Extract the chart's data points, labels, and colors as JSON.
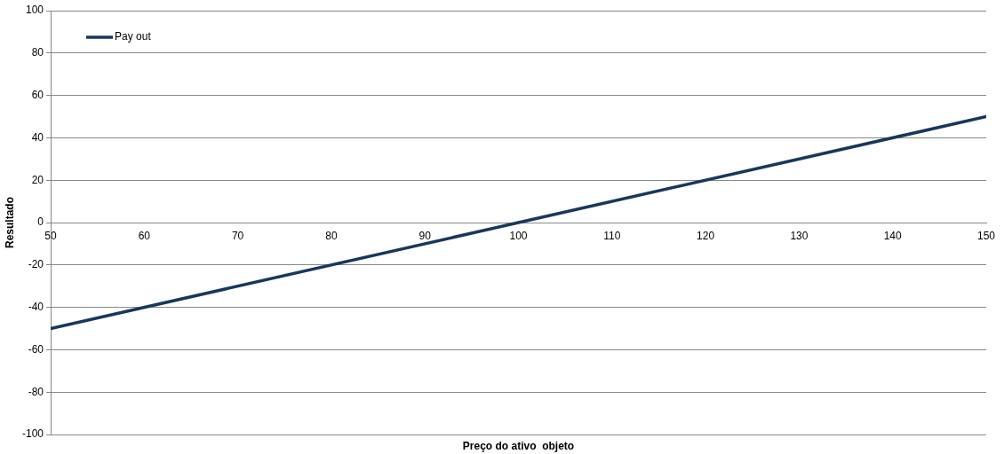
{
  "chart_data": {
    "type": "line",
    "xlabel": "Preço do ativo  objeto",
    "ylabel": "Resultado",
    "x": [
      50,
      100,
      150
    ],
    "series": [
      {
        "name": "Pay out",
        "color": "#17375e",
        "values": [
          -50,
          0,
          50
        ]
      }
    ],
    "xlim": [
      50,
      150
    ],
    "xticks": [
      50,
      60,
      70,
      80,
      90,
      100,
      110,
      120,
      130,
      140,
      150
    ],
    "ylim": [
      -100,
      100
    ],
    "yticks": [
      -100,
      -80,
      -60,
      -40,
      -20,
      0,
      20,
      40,
      60,
      80,
      100
    ],
    "grid": "y",
    "legend": "top left",
    "marker": "none",
    "line_style": "solid"
  }
}
